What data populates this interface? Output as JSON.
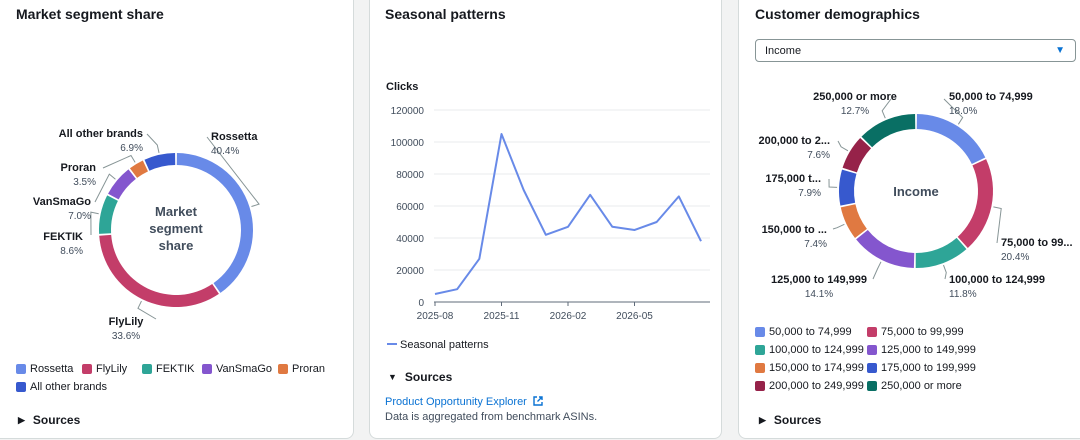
{
  "colors": {
    "blue": "#688ae8",
    "crimson": "#c33d69",
    "teal": "#2ea597",
    "purple": "#8456ce",
    "orange": "#e07941",
    "navy": "#3759ce",
    "maroon": "#962249",
    "green": "#096f64",
    "line": "#688ae8",
    "link": "#0972d3"
  },
  "panels": {
    "market": {
      "title": "Market segment share",
      "center_lines": [
        "Market",
        "segment",
        "share"
      ],
      "sources_label": "Sources"
    },
    "seasonal": {
      "title": "Seasonal patterns",
      "sources_label": "Sources",
      "source_link": "Product Opportunity Explorer",
      "note": "Data is aggregated from benchmark ASINs."
    },
    "demographics": {
      "title": "Customer demographics",
      "dropdown_value": "Income",
      "center_label": "Income",
      "sources_label": "Sources"
    }
  },
  "chart_data": [
    {
      "type": "pie",
      "donut": true,
      "title": "Market segment share",
      "center_text": "Market segment share",
      "slices": [
        {
          "label": "Rossetta",
          "value": 40.4,
          "value_label": "40.4%",
          "color": "#688ae8"
        },
        {
          "label": "FlyLily",
          "value": 33.6,
          "value_label": "33.6%",
          "color": "#c33d69"
        },
        {
          "label": "FEKTIK",
          "value": 8.6,
          "value_label": "8.6%",
          "color": "#2ea597"
        },
        {
          "label": "VanSmaGo",
          "value": 7.0,
          "value_label": "7.0%",
          "color": "#8456ce"
        },
        {
          "label": "Proran",
          "value": 3.5,
          "value_label": "3.5%",
          "color": "#e07941"
        },
        {
          "label": "All other brands",
          "value": 6.9,
          "value_label": "6.9%",
          "color": "#3759ce"
        }
      ],
      "legend": [
        "Rossetta",
        "FlyLily",
        "FEKTIK",
        "VanSmaGo",
        "Proran",
        "All other brands"
      ]
    },
    {
      "type": "line",
      "title": "Seasonal patterns",
      "ylabel": "Clicks",
      "ylim": [
        0,
        120000
      ],
      "yticks": [
        0,
        20000,
        40000,
        60000,
        80000,
        100000,
        120000
      ],
      "ytick_labels": [
        "0",
        "20000",
        "40000",
        "60000",
        "80000",
        "100000",
        "120000"
      ],
      "xtick_labels": [
        "2025-08",
        "2025-11",
        "2026-02",
        "2026-05"
      ],
      "grid": true,
      "legend_position": "bottom",
      "series": [
        {
          "name": "Seasonal patterns",
          "color": "#688ae8",
          "x": [
            "2025-08",
            "2025-09",
            "2025-10",
            "2025-11",
            "2025-12",
            "2026-01",
            "2026-02",
            "2026-03",
            "2026-04",
            "2026-05",
            "2026-06",
            "2026-07",
            "2026-08"
          ],
          "values": [
            5000,
            8000,
            27000,
            105000,
            70000,
            42000,
            47000,
            67000,
            47000,
            45000,
            50000,
            66000,
            38000
          ]
        }
      ]
    },
    {
      "type": "pie",
      "donut": true,
      "title": "Customer demographics",
      "center_text": "Income",
      "slices": [
        {
          "label": "50,000 to 74,999",
          "short_label": "50,000 to 74,999",
          "value": 18.0,
          "value_label": "18.0%",
          "color": "#688ae8"
        },
        {
          "label": "75,000 to 99,999",
          "short_label": "75,000 to 99...",
          "value": 20.4,
          "value_label": "20.4%",
          "color": "#c33d69"
        },
        {
          "label": "100,000 to 124,999",
          "short_label": "100,000 to 124,999",
          "value": 11.8,
          "value_label": "11.8%",
          "color": "#2ea597"
        },
        {
          "label": "125,000 to 149,999",
          "short_label": "125,000 to 149,999",
          "value": 14.1,
          "value_label": "14.1%",
          "color": "#8456ce"
        },
        {
          "label": "150,000 to 174,999",
          "short_label": "150,000 to ...",
          "value": 7.4,
          "value_label": "7.4%",
          "color": "#e07941"
        },
        {
          "label": "175,000 to 199,999",
          "short_label": "175,000 t...",
          "value": 7.9,
          "value_label": "7.9%",
          "color": "#3759ce"
        },
        {
          "label": "200,000 to 249,999",
          "short_label": "200,000 to 2...",
          "value": 7.6,
          "value_label": "7.6%",
          "color": "#962249"
        },
        {
          "label": "250,000 or more",
          "short_label": "250,000 or more",
          "value": 12.7,
          "value_label": "12.7%",
          "color": "#096f64"
        }
      ],
      "legend": [
        "50,000 to 74,999",
        "75,000 to 99,999",
        "100,000 to 124,999",
        "125,000 to 149,999",
        "150,000 to 174,999",
        "175,000 to 199,999",
        "200,000 to 249,999",
        "250,000 or more"
      ]
    }
  ]
}
